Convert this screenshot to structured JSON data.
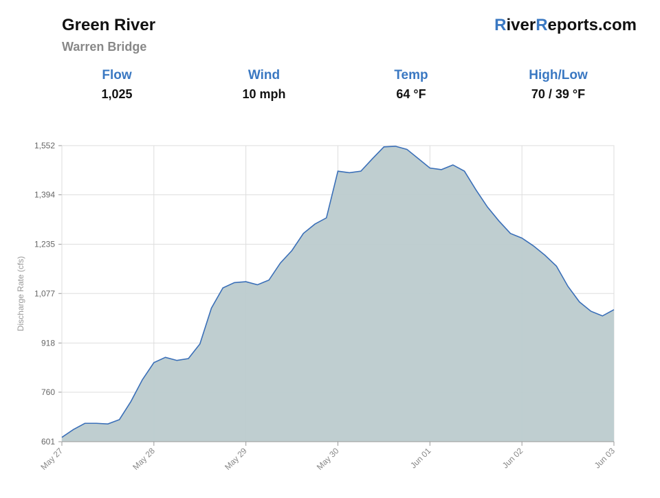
{
  "header": {
    "title": "Green River",
    "subtitle": "Warren Bridge",
    "brand": "RiverReports.com"
  },
  "stats": [
    {
      "label": "Flow",
      "value": "1,025"
    },
    {
      "label": "Wind",
      "value": "10 mph"
    },
    {
      "label": "Temp",
      "value": "64 °F"
    },
    {
      "label": "High/Low",
      "value": "70 / 39 °F"
    }
  ],
  "chart_data": {
    "type": "area",
    "y_label": "Discharge Rate (cfs)",
    "line_color": "#3a6fb8",
    "color": "#bccbce",
    "grid": true,
    "xlim": [
      0,
      6
    ],
    "xticks": [
      {
        "value": 0,
        "label": "May 27"
      },
      {
        "value": 1,
        "label": "May 28"
      },
      {
        "value": 2,
        "label": "May 29"
      },
      {
        "value": 3,
        "label": "May 30"
      },
      {
        "value": 4,
        "label": "Jun 01"
      },
      {
        "value": 5,
        "label": "Jun 02"
      },
      {
        "value": 6,
        "label": "Jun 03"
      }
    ],
    "ylim": [
      601,
      1552
    ],
    "yticks": [
      601,
      760,
      918,
      {
        "value": 1077,
        "label": "1,077"
      },
      {
        "value": 1235,
        "label": "1,235"
      },
      {
        "value": 1394,
        "label": "1,394"
      },
      {
        "value": 1552,
        "label": "1,552"
      }
    ],
    "x": [
      0,
      0.125,
      0.25,
      0.375,
      0.5,
      0.625,
      0.75,
      0.875,
      1,
      1.125,
      1.25,
      1.375,
      1.5,
      1.625,
      1.75,
      1.875,
      2,
      2.125,
      2.25,
      2.375,
      2.5,
      2.625,
      2.75,
      2.875,
      3,
      3.125,
      3.25,
      3.375,
      3.5,
      3.625,
      3.75,
      3.875,
      4,
      4.125,
      4.25,
      4.375,
      4.5,
      4.625,
      4.75,
      4.875,
      5,
      5.125,
      5.25,
      5.375,
      5.5,
      5.625,
      5.75,
      5.875,
      6
    ],
    "values": [
      615,
      640,
      660,
      660,
      658,
      672,
      730,
      800,
      855,
      872,
      862,
      868,
      915,
      1030,
      1095,
      1112,
      1115,
      1105,
      1120,
      1175,
      1215,
      1270,
      1300,
      1320,
      1470,
      1465,
      1470,
      1510,
      1548,
      1550,
      1540,
      1510,
      1480,
      1475,
      1490,
      1470,
      1410,
      1355,
      1310,
      1270,
      1255,
      1230,
      1200,
      1165,
      1100,
      1050,
      1020,
      1005,
      1025
    ]
  }
}
